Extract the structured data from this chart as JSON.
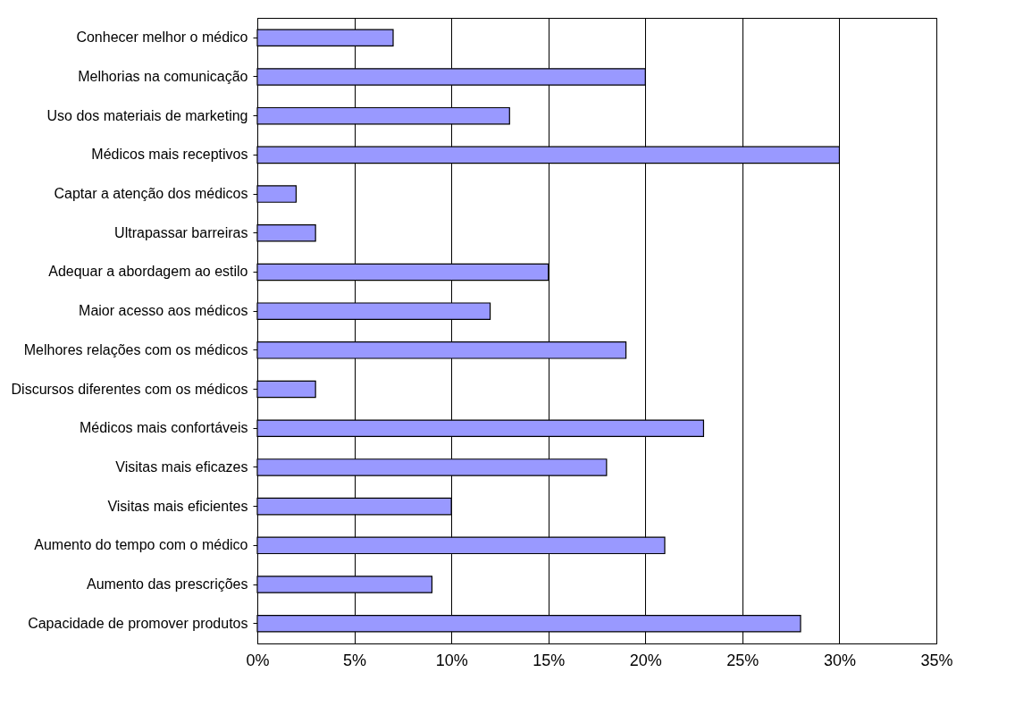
{
  "chart_data": {
    "type": "bar",
    "orientation": "horizontal",
    "categories": [
      "Conhecer melhor o médico",
      "Melhorias na comunicação",
      "Uso dos materiais de marketing",
      "Médicos mais receptivos",
      "Captar a atenção dos médicos",
      "Ultrapassar barreiras",
      "Adequar a abordagem ao estilo",
      "Maior acesso aos médicos",
      "Melhores relações com os médicos",
      "Discursos diferentes com os médicos",
      "Médicos mais confortáveis",
      "Visitas mais eficazes",
      "Visitas mais eficientes",
      "Aumento do tempo com o médico",
      "Aumento das prescrições",
      "Capacidade de promover produtos"
    ],
    "values": [
      7,
      20,
      13,
      30,
      2,
      3,
      15,
      12,
      19,
      3,
      23,
      18,
      10,
      21,
      9,
      28
    ],
    "color": "#9999ff",
    "xlim": [
      0,
      35
    ],
    "xticks": [
      {
        "value": 0,
        "label": "0%"
      },
      {
        "value": 5,
        "label": "5%"
      },
      {
        "value": 10,
        "label": "10%"
      },
      {
        "value": 15,
        "label": "15%"
      },
      {
        "value": 20,
        "label": "20%"
      },
      {
        "value": 25,
        "label": "25%"
      },
      {
        "value": 30,
        "label": "30%"
      },
      {
        "value": 35,
        "label": "35%"
      }
    ],
    "grid": "x"
  }
}
